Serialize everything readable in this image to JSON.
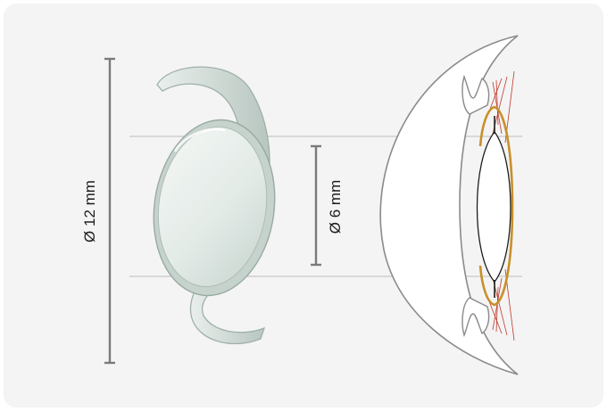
{
  "diagram": {
    "overall_diameter_label": "Ø 12 mm",
    "optic_diameter_label": "Ø 6 mm"
  },
  "colors": {
    "background": "#f4f4f4",
    "dimension_line": "#7b7b7b",
    "guide_line": "#c8c8c8",
    "eye_outline": "#8a8a8a",
    "lens_implant_outline": "#c8902a",
    "zonule_fibers": "#c0392b"
  }
}
